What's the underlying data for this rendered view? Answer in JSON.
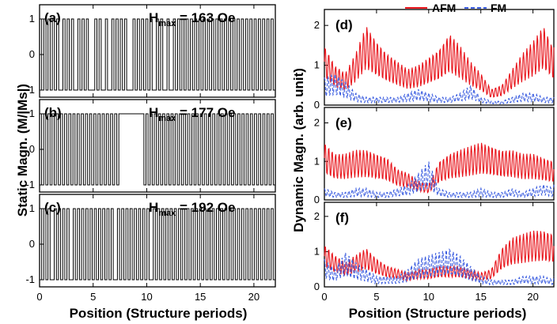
{
  "chart_data": {
    "type": "line",
    "xlabel": "Position (Structure periods)",
    "left_ylabel": "Static Magn. (M/|Ms|)",
    "right_ylabel": "Dynamic Magn. (arb. unit)",
    "xlim": [
      0,
      22
    ],
    "x_ticks": [
      "0",
      "5",
      "10",
      "15",
      "20"
    ],
    "left_ylim": [
      -1.2,
      1.4
    ],
    "left_y_ticks": [
      "-1",
      "0",
      "1"
    ],
    "right_ylim": [
      0,
      2.4
    ],
    "right_y_ticks": [
      "0",
      "1",
      "2"
    ],
    "legend": {
      "afm": "AFM",
      "fm": "FM"
    },
    "colors": {
      "afm": "#e8141b",
      "fm": "#3c5ee0",
      "static": "#000000"
    },
    "static_panels": [
      {
        "label": "(a)",
        "hmax_main": "H",
        "hmax_sub": "max",
        "hmax_value": "= 163 Oe",
        "states": [
          1,
          -1,
          1,
          -1,
          1,
          -1,
          1,
          -1,
          1,
          -1,
          -1,
          1,
          -1,
          1,
          -1,
          1,
          -1,
          -1,
          1,
          -1,
          1,
          -1,
          1,
          -1,
          -1,
          -1,
          1,
          -1,
          1,
          -1,
          -1,
          1,
          -1,
          -1,
          1,
          -1,
          1,
          -1,
          1,
          -1,
          1,
          -1,
          -1,
          -1,
          1,
          -1,
          1,
          -1,
          1,
          -1,
          1,
          -1,
          1,
          -1,
          -1,
          1,
          -1,
          1,
          -1,
          -1,
          1,
          -1,
          -1,
          1,
          -1,
          1,
          -1,
          1,
          -1,
          1,
          -1,
          1,
          -1,
          1,
          -1,
          1,
          -1,
          1,
          -1,
          1,
          -1,
          1,
          -1,
          1,
          -1,
          1,
          -1,
          1,
          -1,
          1,
          -1,
          1,
          -1,
          1,
          -1,
          1,
          -1,
          1,
          -1,
          1,
          -1,
          1,
          -1,
          1,
          -1,
          1,
          -1,
          1,
          -1,
          1,
          -1
        ]
      },
      {
        "label": "(b)",
        "hmax_main": "H",
        "hmax_sub": "max",
        "hmax_value": "= 177 Oe",
        "states": [
          1,
          -1,
          1,
          -1,
          1,
          -1,
          1,
          -1,
          1,
          -1,
          1,
          -1,
          1,
          -1,
          1,
          -1,
          1,
          -1,
          1,
          -1,
          1,
          -1,
          1,
          -1,
          1,
          -1,
          1,
          -1,
          1,
          -1,
          1,
          -1,
          1,
          -1,
          1,
          -1,
          1,
          -1,
          1,
          1,
          1,
          1,
          1,
          1,
          1,
          1,
          1,
          1,
          1,
          1,
          -1,
          1,
          -1,
          1,
          -1,
          1,
          -1,
          1,
          -1,
          1,
          -1,
          1,
          -1,
          1,
          -1,
          1,
          -1,
          1,
          -1,
          1,
          -1,
          1,
          -1,
          1,
          -1,
          1,
          -1,
          1,
          -1,
          1,
          -1,
          1,
          -1,
          1,
          -1,
          1,
          -1,
          1,
          -1,
          1,
          -1,
          1,
          -1,
          1,
          -1,
          1,
          -1,
          1,
          -1,
          1,
          -1,
          1,
          -1,
          1,
          -1,
          1,
          -1,
          1,
          -1,
          1,
          -1,
          1,
          -1
        ]
      },
      {
        "label": "(c)",
        "hmax_main": "H",
        "hmax_sub": "max",
        "hmax_value": "= 192 Oe",
        "states": [
          1,
          -1,
          1,
          -1,
          1,
          -1,
          -1,
          1,
          -1,
          1,
          -1,
          1,
          -1,
          1,
          -1,
          -1,
          1,
          -1,
          1,
          -1,
          1,
          -1,
          1,
          -1,
          1,
          -1,
          1,
          -1,
          1,
          -1,
          1,
          -1,
          1,
          -1,
          1,
          -1,
          -1,
          1,
          -1,
          1,
          -1,
          1,
          -1,
          1,
          -1,
          1,
          -1,
          1,
          -1,
          1,
          -1,
          1,
          -1,
          -1,
          1,
          -1,
          1,
          -1,
          1,
          -1,
          1,
          -1,
          1,
          -1,
          1,
          -1,
          1,
          -1,
          1,
          -1,
          1,
          -1,
          1,
          -1,
          1,
          -1,
          1,
          -1,
          1,
          -1,
          1,
          -1,
          1,
          -1,
          1,
          -1,
          1,
          -1,
          1,
          -1,
          1,
          -1,
          1,
          -1,
          1,
          -1,
          1,
          -1,
          1,
          -1,
          1,
          -1,
          1,
          -1,
          1,
          -1,
          1,
          -1,
          1,
          -1,
          1,
          -1
        ]
      }
    ],
    "dynamic_panels": [
      {
        "label": "(d)",
        "x": [
          0,
          1,
          2,
          3,
          4,
          5,
          6,
          7,
          8,
          9,
          10,
          11,
          12,
          13,
          14,
          15,
          16,
          17,
          18,
          19,
          20,
          21,
          22
        ],
        "afm": [
          1.5,
          1.0,
          0.8,
          1.3,
          2.0,
          1.6,
          1.3,
          1.1,
          0.9,
          1.0,
          1.2,
          1.4,
          1.8,
          1.5,
          1.1,
          0.8,
          0.4,
          0.5,
          0.9,
          1.3,
          1.6,
          2.0,
          1.4
        ],
        "fm": [
          0.7,
          0.8,
          0.6,
          0.3,
          0.2,
          0.2,
          0.2,
          0.2,
          0.3,
          0.4,
          0.3,
          0.2,
          0.2,
          0.3,
          0.5,
          0.2,
          0.1,
          0.1,
          0.2,
          0.3,
          0.3,
          0.2,
          0.2
        ]
      },
      {
        "label": "(e)",
        "x": [
          0,
          1,
          2,
          3,
          4,
          5,
          6,
          7,
          8,
          9,
          10,
          11,
          12,
          13,
          14,
          15,
          16,
          17,
          18,
          19,
          20,
          21,
          22
        ],
        "afm": [
          1.5,
          1.2,
          1.2,
          1.3,
          1.3,
          1.2,
          1.1,
          0.8,
          0.7,
          0.5,
          0.4,
          1.0,
          1.2,
          1.3,
          1.4,
          1.5,
          1.4,
          1.3,
          1.3,
          1.2,
          1.2,
          1.1,
          1.0
        ],
        "fm": [
          0.3,
          0.2,
          0.2,
          0.3,
          0.3,
          0.2,
          0.2,
          0.3,
          0.4,
          0.7,
          1.0,
          0.3,
          0.2,
          0.2,
          0.2,
          0.3,
          0.2,
          0.2,
          0.3,
          0.2,
          0.3,
          0.4,
          0.3
        ]
      },
      {
        "label": "(f)",
        "x": [
          0,
          1,
          2,
          3,
          4,
          5,
          6,
          7,
          8,
          9,
          10,
          11,
          12,
          13,
          14,
          15,
          16,
          17,
          18,
          19,
          20,
          21,
          22
        ],
        "afm": [
          1.2,
          0.9,
          0.7,
          0.9,
          1.1,
          0.8,
          0.6,
          0.5,
          0.4,
          0.5,
          0.5,
          0.6,
          0.6,
          0.6,
          0.5,
          0.4,
          0.5,
          1.1,
          1.4,
          1.5,
          1.6,
          1.6,
          1.5
        ],
        "fm": [
          0.8,
          0.5,
          1.0,
          0.7,
          0.5,
          0.3,
          0.3,
          0.3,
          0.5,
          0.8,
          0.9,
          1.0,
          1.1,
          0.9,
          0.6,
          0.3,
          0.2,
          0.2,
          0.2,
          0.3,
          0.3,
          0.3,
          0.2
        ]
      }
    ]
  }
}
